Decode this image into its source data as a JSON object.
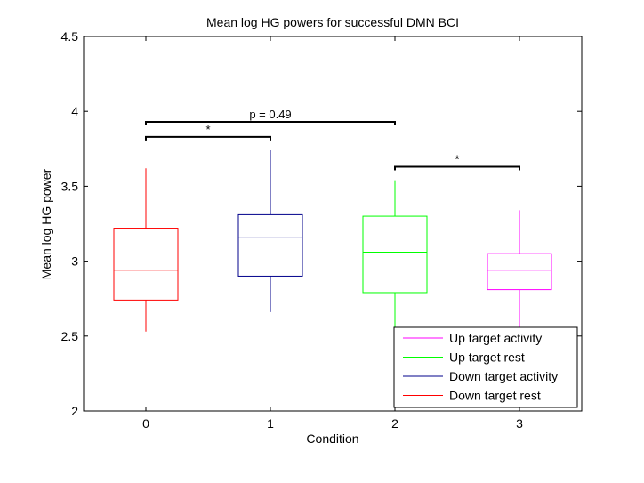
{
  "chart_data": {
    "type": "boxplot",
    "title": "Mean log HG powers for successful DMN BCI",
    "xlabel": "Condition",
    "ylabel": "Mean log HG power",
    "xlim": [
      -0.5,
      3.5
    ],
    "ylim": [
      2,
      4.5
    ],
    "x_ticks": [
      "0",
      "1",
      "2",
      "3"
    ],
    "y_ticks": [
      "2",
      "2.5",
      "3",
      "3.5",
      "4",
      "4.5"
    ],
    "grid": false,
    "legend_position": "bottom-right",
    "boxes": [
      {
        "x": 0,
        "series": "Down target rest",
        "color": "#ff0000",
        "min": 2.53,
        "q1": 2.74,
        "median": 2.94,
        "q3": 3.22,
        "max": 3.62
      },
      {
        "x": 1,
        "series": "Down target activity",
        "color": "#00008b",
        "min": 2.66,
        "q1": 2.9,
        "median": 3.16,
        "q3": 3.31,
        "max": 3.74
      },
      {
        "x": 2,
        "series": "Up target rest",
        "color": "#00ff00",
        "min": 2.5,
        "q1": 2.79,
        "median": 3.06,
        "q3": 3.3,
        "max": 3.54
      },
      {
        "x": 3,
        "series": "Up target activity",
        "color": "#ff00ff",
        "min": 2.5,
        "q1": 2.81,
        "median": 2.94,
        "q3": 3.05,
        "max": 3.34
      }
    ],
    "legend": [
      {
        "label": "Up target activity",
        "color": "#ff00ff"
      },
      {
        "label": "Up target rest",
        "color": "#00ff00"
      },
      {
        "label": "Down target activity",
        "color": "#00008b"
      },
      {
        "label": "Down target rest",
        "color": "#ff0000"
      }
    ],
    "brackets": [
      {
        "x1": 0,
        "x2": 2,
        "y": 3.93,
        "label": "p = 0.49"
      },
      {
        "x1": 0,
        "x2": 1,
        "y": 3.83,
        "label": "*"
      },
      {
        "x1": 2,
        "x2": 3,
        "y": 3.63,
        "label": "*"
      }
    ]
  }
}
